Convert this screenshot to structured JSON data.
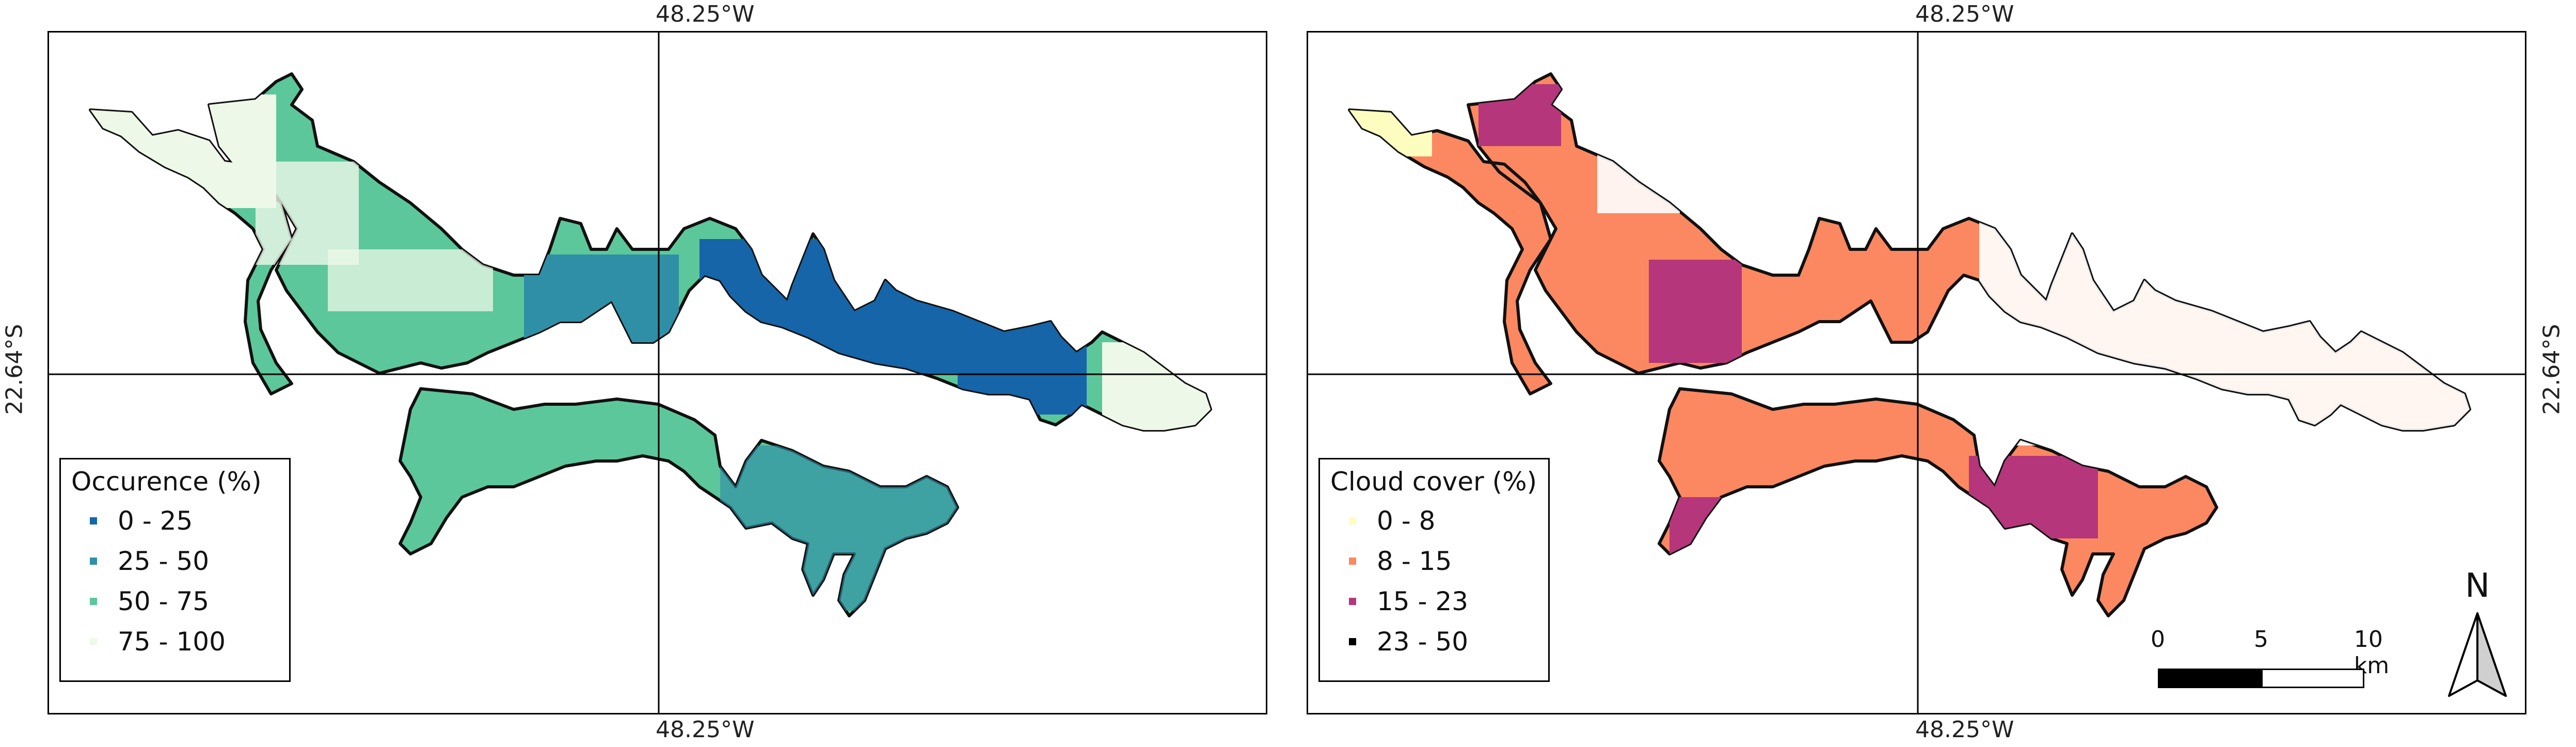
{
  "colors": {
    "outline": "#111111",
    "occ_0_25": "#1565a8",
    "occ_25_50": "#2f8fa6",
    "occ_50_75": "#5cc79a",
    "occ_75_100": "#eef8e8",
    "cloud_0_8": "#fcfdbf",
    "cloud_8_15": "#fb8861",
    "cloud_15_23": "#b5367a",
    "cloud_23_50": "#000004"
  },
  "left_map": {
    "coord_top": "48.25°W",
    "coord_bottom": "48.25°W",
    "coord_left": "22.64°S",
    "legend": {
      "title": "Occurence (%)",
      "items": [
        {
          "label": "0 - 25",
          "color": "#1565a8"
        },
        {
          "label": "25 - 50",
          "color": "#2f8fa6"
        },
        {
          "label": "50 - 75",
          "color": "#5cc79a"
        },
        {
          "label": "75 - 100",
          "color": "#eef8e8"
        }
      ]
    }
  },
  "right_map": {
    "coord_top": "48.25°W",
    "coord_bottom": "48.25°W",
    "coord_right": "22.64°S",
    "legend": {
      "title": "Cloud cover (%)",
      "items": [
        {
          "label": "0 - 8",
          "color": "#fcfdbf"
        },
        {
          "label": "8 - 15",
          "color": "#fb8861"
        },
        {
          "label": "15 - 23",
          "color": "#b5367a"
        },
        {
          "label": "23 - 50",
          "color": "#000004"
        }
      ]
    },
    "scale_bar": {
      "ticks": [
        "0",
        "5",
        "10 km"
      ]
    },
    "north_arrow": {
      "label": "N"
    }
  }
}
